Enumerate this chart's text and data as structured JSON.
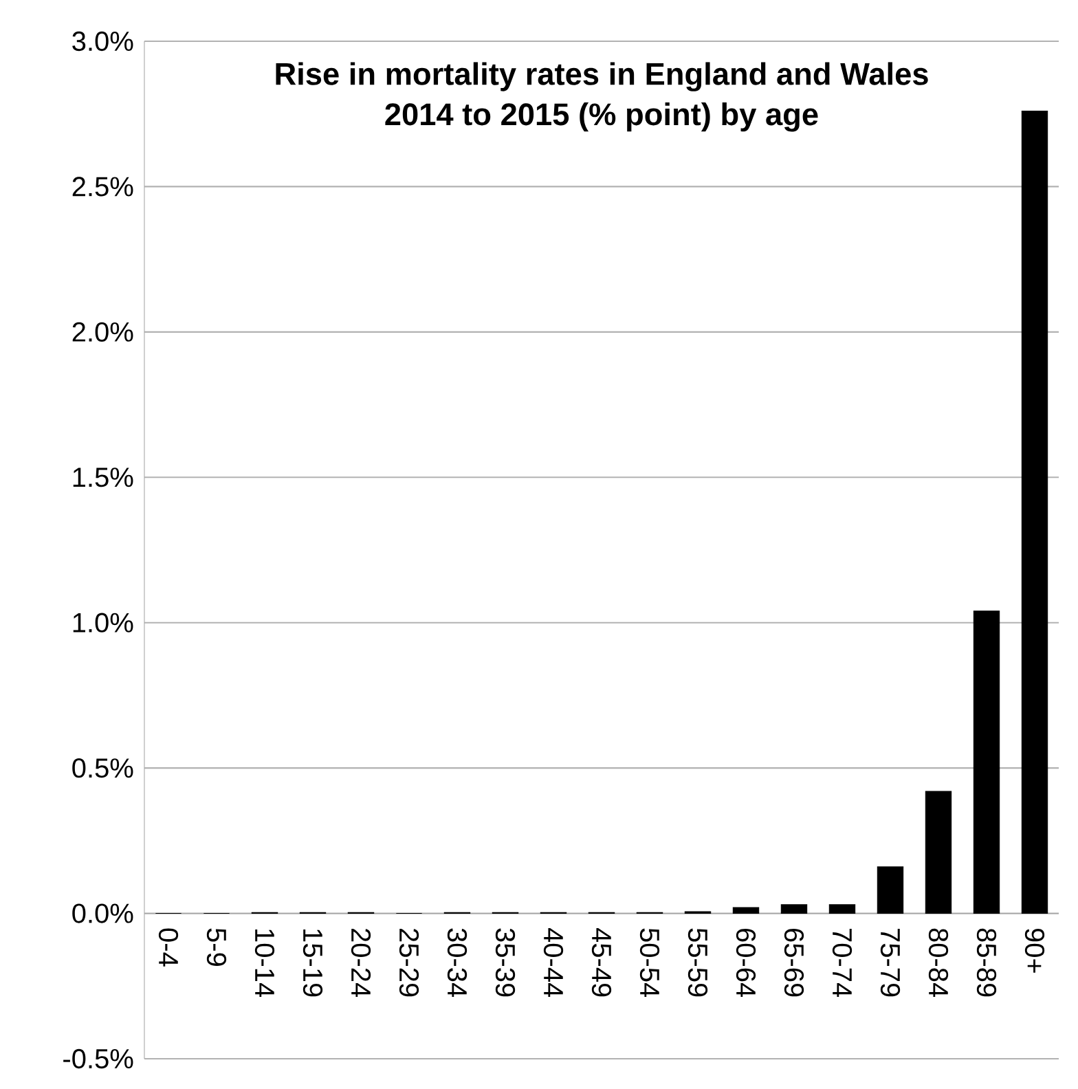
{
  "chart_data": {
    "type": "bar",
    "title": "Rise in mortality rates in England and Wales\n2014 to 2015 (% point) by age",
    "categories": [
      "0-4",
      "5-9",
      "10-14",
      "15-19",
      "20-24",
      "25-29",
      "30-34",
      "35-39",
      "40-44",
      "45-49",
      "50-54",
      "55-59",
      "60-64",
      "65-69",
      "70-74",
      "75-79",
      "80-84",
      "85-89",
      "90+"
    ],
    "values": [
      0,
      0,
      0.003,
      0.003,
      0.003,
      0,
      0.003,
      0.003,
      0.003,
      0.003,
      0.003,
      0.006,
      0.02,
      0.03,
      0.03,
      0.16,
      0.42,
      1.04,
      2.76
    ],
    "color": "#000000",
    "ylim": [
      -0.5,
      3.0
    ],
    "yticks": [
      {
        "value": -0.5,
        "label": "-0.5%"
      },
      {
        "value": 0,
        "label": "0.0%"
      },
      {
        "value": 0.5,
        "label": "0.5%"
      },
      {
        "value": 1.0,
        "label": "1.0%"
      },
      {
        "value": 1.5,
        "label": "1.5%"
      },
      {
        "value": 2.0,
        "label": "2.0%"
      },
      {
        "value": 2.5,
        "label": "2.5%"
      },
      {
        "value": 3.0,
        "label": "3.0%"
      }
    ],
    "grid": "y"
  }
}
